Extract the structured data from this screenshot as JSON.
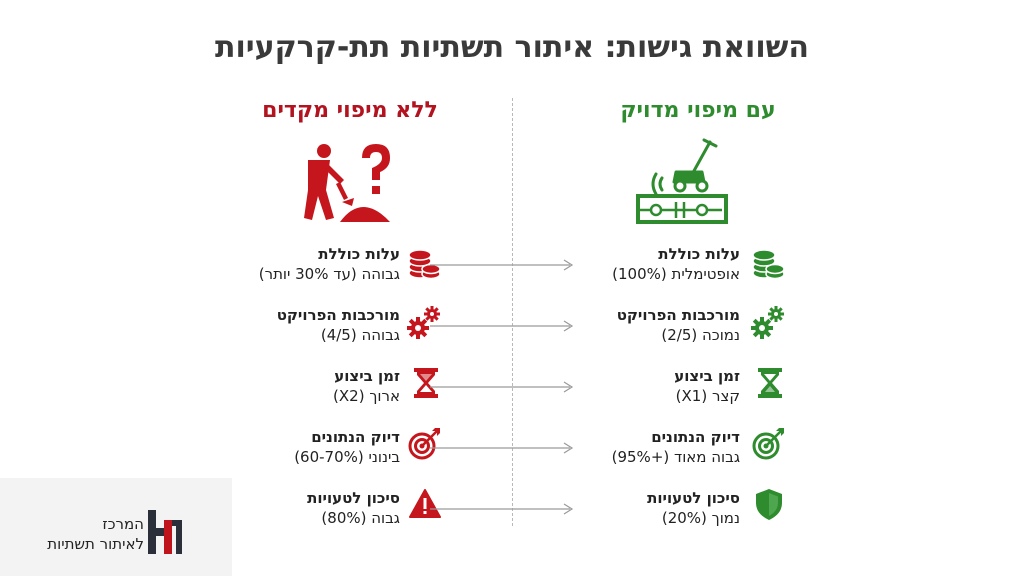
{
  "title": "השוואת גישות: איתור תשתיות תת-קרקעיות",
  "right_column": {
    "heading": "עם מיפוי מדויק",
    "color": "#2e8b2e",
    "hero_icon": "lawnmower-scanner-icon",
    "rows": [
      {
        "line1": "עלות כוללת",
        "line2": "אופטימלית (100%)",
        "icon": "coins-icon"
      },
      {
        "line1": "מורכבות הפרויקט",
        "line2": "נמוכה (2/5)",
        "icon": "gears-icon"
      },
      {
        "line1": "זמן ביצוע",
        "line2": "קצר (X1)",
        "icon": "hourglass-icon"
      },
      {
        "line1": "דיוק הנתונים",
        "line2": "גבוה מאוד (+95%)",
        "icon": "target-icon"
      },
      {
        "line1": "סיכון לטעויות",
        "line2": "נמוך (20%)",
        "icon": "shield-icon"
      }
    ]
  },
  "left_column": {
    "heading": "ללא מיפוי מקדים",
    "color": "#b3121f",
    "hero_icon": "digging-worker-question-icon",
    "rows": [
      {
        "line1": "עלות כוללת",
        "line2": "גבוהה (עד 30% יותר)",
        "icon": "coins-icon"
      },
      {
        "line1": "מורכבות הפרויקט",
        "line2": "גבוהה (4/5)",
        "icon": "gears-icon"
      },
      {
        "line1": "זמן ביצוע",
        "line2": "ארוך (X2)",
        "icon": "hourglass-icon"
      },
      {
        "line1": "דיוק הנתונים",
        "line2": "בינוני (60-70%)",
        "icon": "target-icon"
      },
      {
        "line1": "סיכון לטעויות",
        "line2": "גבוה (80%)",
        "icon": "warning-icon"
      }
    ]
  },
  "logo": {
    "line1": "המרכז",
    "line2": "לאיתור תשתיות",
    "color_dark": "#2b2f3a",
    "color_red": "#c0141c"
  }
}
